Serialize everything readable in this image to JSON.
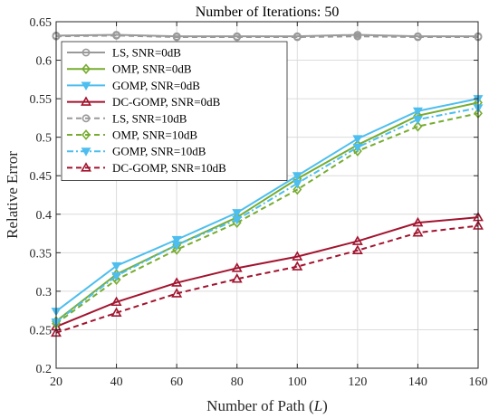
{
  "chart_data": {
    "type": "line",
    "title": "Number of Iterations: 50",
    "xlabel": "Number of Path (L)",
    "ylabel": "Relative Error",
    "x": [
      20,
      40,
      60,
      80,
      100,
      120,
      140,
      160
    ],
    "xlim": [
      20,
      160
    ],
    "ylim": [
      0.2,
      0.65
    ],
    "xticks": [
      20,
      40,
      60,
      80,
      100,
      120,
      140,
      160
    ],
    "xtick_labels": [
      "20",
      "40",
      "60",
      "80",
      "100",
      "120",
      "140",
      "160"
    ],
    "yticks": [
      0.2,
      0.25,
      0.3,
      0.35,
      0.4,
      0.45,
      0.5,
      0.55,
      0.6,
      0.65
    ],
    "ytick_labels": [
      "0.2",
      "0.25",
      "0.3",
      "0.35",
      "0.4",
      "0.45",
      "0.5",
      "0.55",
      "0.6",
      "0.65"
    ],
    "grid": true,
    "legend_position": "top-left",
    "series": [
      {
        "name": "LS, SNR=0dB",
        "color": "#999999",
        "dash": "solid",
        "marker": "circle",
        "values": [
          0.632,
          0.633,
          0.631,
          0.631,
          0.631,
          0.633,
          0.631,
          0.631
        ]
      },
      {
        "name": "OMP, SNR=0dB",
        "color": "#77AC30",
        "dash": "solid",
        "marker": "diamond",
        "values": [
          0.261,
          0.322,
          0.36,
          0.396,
          0.446,
          0.49,
          0.528,
          0.545
        ]
      },
      {
        "name": "GOMP, SNR=0dB",
        "color": "#4DBEEE",
        "dash": "solid",
        "marker": "triangle-down",
        "values": [
          0.274,
          0.333,
          0.367,
          0.402,
          0.45,
          0.498,
          0.534,
          0.55
        ]
      },
      {
        "name": "DC-GOMP, SNR=0dB",
        "color": "#A2142F",
        "dash": "solid",
        "marker": "triangle-up",
        "values": [
          0.254,
          0.286,
          0.311,
          0.33,
          0.345,
          0.365,
          0.389,
          0.396
        ]
      },
      {
        "name": "LS, SNR=10dB",
        "color": "#999999",
        "dash": "dashed",
        "marker": "circle",
        "values": [
          0.631,
          0.632,
          0.63,
          0.63,
          0.63,
          0.631,
          0.63,
          0.63
        ]
      },
      {
        "name": "OMP, SNR=10dB",
        "color": "#77AC30",
        "dash": "dashed",
        "marker": "diamond",
        "values": [
          0.258,
          0.315,
          0.354,
          0.389,
          0.432,
          0.482,
          0.514,
          0.531
        ]
      },
      {
        "name": "GOMP, SNR=10dB",
        "color": "#4DBEEE",
        "dash": "dashdot",
        "marker": "triangle-down",
        "values": [
          0.26,
          0.32,
          0.36,
          0.393,
          0.44,
          0.487,
          0.523,
          0.538
        ]
      },
      {
        "name": "DC-GOMP, SNR=10dB",
        "color": "#A2142F",
        "dash": "dashed",
        "marker": "triangle-up",
        "values": [
          0.246,
          0.272,
          0.297,
          0.316,
          0.332,
          0.353,
          0.376,
          0.385
        ]
      }
    ]
  }
}
